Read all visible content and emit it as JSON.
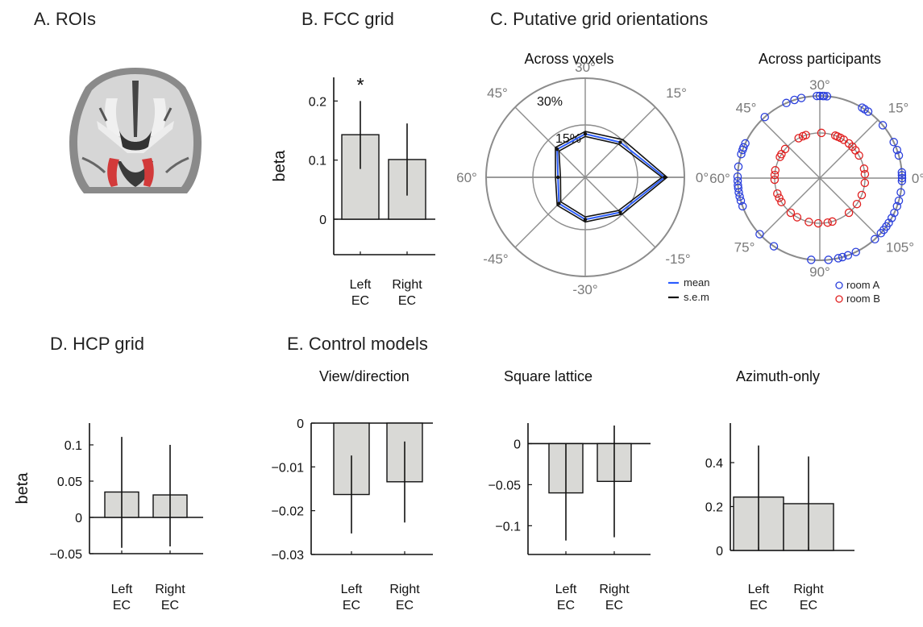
{
  "panels": {
    "a": {
      "title": "A. ROIs"
    },
    "b": {
      "title": "B. FCC grid"
    },
    "c": {
      "title": "C. Putative grid orientations",
      "left_title": "Across voxels",
      "right_title": "Across participants"
    },
    "d": {
      "title": "D. HCP grid"
    },
    "e": {
      "title": "E. Control models",
      "sub": [
        "View/direction",
        "Square lattice",
        "Azimuth-only"
      ]
    }
  },
  "colors": {
    "bar_fill": "#d9d9d6",
    "mean": "#2b5cff",
    "sem": "#111111",
    "room_a": "#2a3fdc",
    "room_b": "#e02020",
    "polar_grid": "#8c8c8c",
    "roi": "#d23a3a"
  },
  "polar_left": {
    "angle_labels": [
      "0°",
      "15°",
      "30°",
      "45°",
      "60°",
      "-45°",
      "-30°",
      "-15°"
    ],
    "radial_labels": [
      "15%",
      "30%"
    ],
    "legend": [
      {
        "label": "mean",
        "color": "#2b5cff"
      },
      {
        "label": "s.e.m",
        "color": "#111111"
      }
    ]
  },
  "polar_right": {
    "angle_labels": [
      "0°",
      "15°",
      "30°",
      "45°",
      "60°",
      "75°",
      "90°",
      "105°"
    ],
    "legend": [
      {
        "label": "room  A",
        "color": "#2a3fdc"
      },
      {
        "label": "room  B",
        "color": "#e02020"
      }
    ]
  },
  "chart_data": [
    {
      "id": "fcc_grid",
      "type": "bar",
      "title": "B. FCC grid",
      "ylabel": "beta",
      "categories": [
        "Left EC",
        "Right EC"
      ],
      "values": [
        0.143,
        0.101
      ],
      "error_low": [
        0.085,
        0.04
      ],
      "error_high": [
        0.2,
        0.162
      ],
      "ylim": [
        -0.06,
        0.24
      ],
      "yticks": [
        0,
        0.1,
        0.2
      ],
      "ytick_labels": [
        "0",
        "0.1",
        "0.2"
      ],
      "annotations": [
        "*"
      ]
    },
    {
      "id": "hcp_grid",
      "type": "bar",
      "title": "D. HCP grid",
      "ylabel": "beta",
      "categories": [
        "Left EC",
        "Right EC"
      ],
      "values": [
        0.035,
        0.031
      ],
      "error_low": [
        -0.042,
        -0.04
      ],
      "error_high": [
        0.111,
        0.1
      ],
      "ylim": [
        -0.05,
        0.13
      ],
      "yticks": [
        -0.05,
        0,
        0.05,
        0.1
      ],
      "ytick_labels": [
        "−0.05",
        "0",
        "0.05",
        "0.1"
      ]
    },
    {
      "id": "view_direction",
      "type": "bar",
      "title": "View/direction",
      "categories": [
        "Left EC",
        "Right EC"
      ],
      "values": [
        -0.0163,
        -0.0134
      ],
      "error_low": [
        -0.0252,
        -0.0227
      ],
      "error_high": [
        -0.0074,
        -0.0042
      ],
      "ylim": [
        -0.03,
        0
      ],
      "yticks": [
        -0.03,
        -0.02,
        -0.01,
        0
      ],
      "ytick_labels": [
        "−0.03",
        "−0.02",
        "−0.01",
        "0"
      ]
    },
    {
      "id": "square_lattice",
      "type": "bar",
      "title": "Square lattice",
      "categories": [
        "Left EC",
        "Right EC"
      ],
      "values": [
        -0.06,
        -0.046
      ],
      "error_low": [
        -0.118,
        -0.114
      ],
      "error_high": [
        0,
        0.022
      ],
      "ylim": [
        -0.135,
        0.025
      ],
      "yticks": [
        -0.1,
        -0.05,
        0
      ],
      "ytick_labels": [
        "−0.1",
        "−0.05",
        "0"
      ]
    },
    {
      "id": "azimuth_only",
      "type": "bar",
      "title": "Azimuth-only",
      "categories": [
        "Left EC",
        "Right EC"
      ],
      "values": [
        0.243,
        0.213
      ],
      "error_low": [
        0,
        0
      ],
      "error_high": [
        0.478,
        0.428
      ],
      "ylim": [
        0,
        0.58
      ],
      "yticks": [
        0,
        0.2,
        0.4
      ],
      "ytick_labels": [
        "0",
        "0.2",
        "0.4"
      ]
    },
    {
      "id": "across_voxels",
      "type": "polar",
      "title": "Across voxels",
      "angles_deg": [
        0,
        15,
        30,
        45,
        60,
        75,
        90,
        105
      ],
      "angle_labels": [
        "0°",
        "15°",
        "30°",
        "45°",
        "60°",
        "-45°",
        "-30°",
        "-15°"
      ],
      "mean_pct": [
        32,
        20,
        17.5,
        16,
        11,
        15,
        17,
        20
      ],
      "sem_low_pct": [
        31,
        19,
        16.5,
        15,
        10,
        14,
        16,
        19
      ],
      "sem_high_pct": [
        33,
        21.5,
        18.5,
        17,
        12,
        16,
        18,
        21
      ],
      "rlim": [
        0,
        40
      ],
      "rticks": [
        15,
        30
      ],
      "rtick_labels": [
        "15%",
        "30%"
      ]
    },
    {
      "id": "across_participants",
      "type": "polar-scatter",
      "title": "Across participants",
      "angle_labels": [
        "0°",
        "15°",
        "30°",
        "45°",
        "60°",
        "75°",
        "90°",
        "105°"
      ],
      "series": [
        {
          "name": "room  A",
          "r": 1.0,
          "theta_deg": [
            -2,
            0,
            2,
            4,
            16,
            20,
            26,
            40,
            54,
            57,
            59,
            85,
            87,
            88,
            90,
            92,
            103,
            108,
            114,
            132,
            155,
            158,
            160,
            163,
            172,
            179,
            182,
            185,
            187,
            190,
            193,
            196,
            200,
            223,
            236,
            264,
            276,
            283,
            286,
            290,
            296,
            312,
            318,
            321,
            324,
            327,
            331,
            335,
            340,
            344,
            350
          ]
        },
        {
          "name": "room  B",
          "r": 0.55,
          "theta_deg": [
            5,
            12,
            30,
            38,
            44,
            50,
            58,
            63,
            67,
            70,
            88,
            108,
            112,
            118,
            140,
            148,
            152,
            170,
            176,
            182,
            200,
            206,
            212,
            230,
            240,
            256,
            268,
            280,
            286,
            310,
            325,
            338,
            354
          ]
        }
      ]
    }
  ]
}
